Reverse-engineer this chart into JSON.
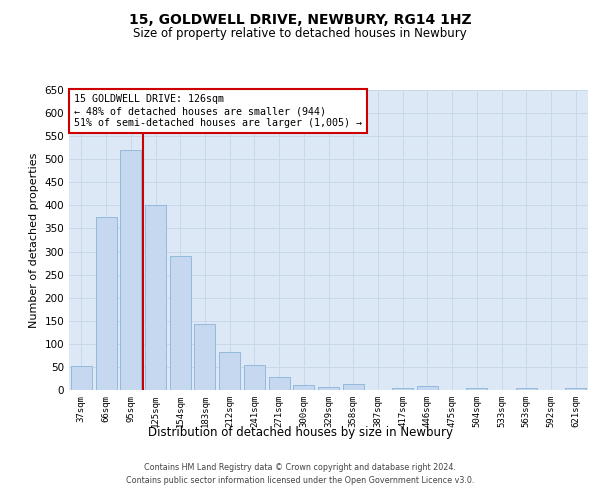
{
  "title_line1": "15, GOLDWELL DRIVE, NEWBURY, RG14 1HZ",
  "title_line2": "Size of property relative to detached houses in Newbury",
  "xlabel": "Distribution of detached houses by size in Newbury",
  "ylabel": "Number of detached properties",
  "categories": [
    "37sqm",
    "66sqm",
    "95sqm",
    "125sqm",
    "154sqm",
    "183sqm",
    "212sqm",
    "241sqm",
    "271sqm",
    "300sqm",
    "329sqm",
    "358sqm",
    "387sqm",
    "417sqm",
    "446sqm",
    "475sqm",
    "504sqm",
    "533sqm",
    "563sqm",
    "592sqm",
    "621sqm"
  ],
  "values": [
    51,
    375,
    520,
    400,
    290,
    143,
    83,
    55,
    28,
    10,
    7,
    12,
    0,
    5,
    8,
    0,
    5,
    0,
    5,
    0,
    5
  ],
  "bar_color": "#c5d8f0",
  "bar_edge_color": "#8ab4d8",
  "annotation_text_line1": "15 GOLDWELL DRIVE: 126sqm",
  "annotation_text_line2": "← 48% of detached houses are smaller (944)",
  "annotation_text_line3": "51% of semi-detached houses are larger (1,005) →",
  "annotation_box_color": "#ffffff",
  "annotation_border_color": "#cc0000",
  "property_line_color": "#cc0000",
  "ylim": [
    0,
    650
  ],
  "yticks": [
    0,
    50,
    100,
    150,
    200,
    250,
    300,
    350,
    400,
    450,
    500,
    550,
    600,
    650
  ],
  "grid_color": "#c8d8e8",
  "background_color": "#dce8f5",
  "footer_line1": "Contains HM Land Registry data © Crown copyright and database right 2024.",
  "footer_line2": "Contains public sector information licensed under the Open Government Licence v3.0."
}
